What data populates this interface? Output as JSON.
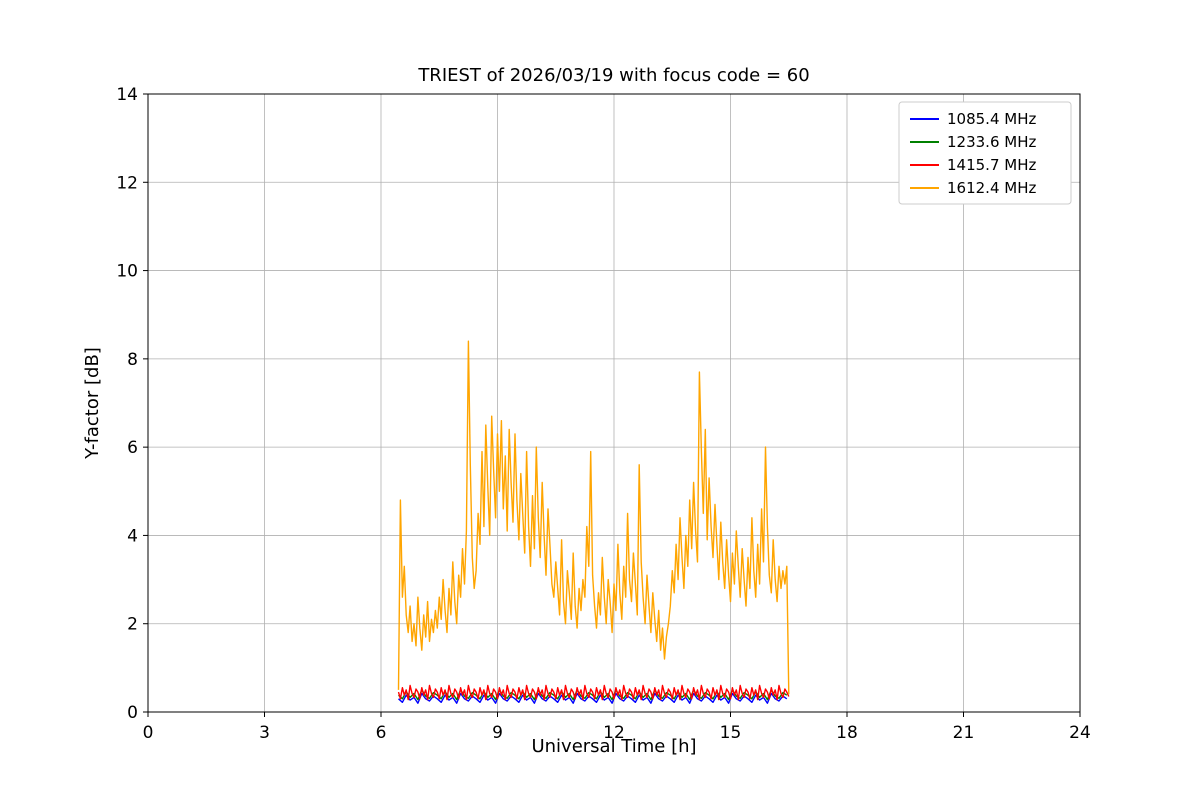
{
  "chart_data": {
    "type": "line",
    "title": "TRIEST of 2026/03/19 with focus code = 60",
    "xlabel": "Universal Time [h]",
    "ylabel": "Y-factor [dB]",
    "xlim": [
      0,
      24
    ],
    "ylim": [
      0,
      14
    ],
    "xticks": [
      0,
      3,
      6,
      9,
      12,
      15,
      18,
      21,
      24
    ],
    "yticks": [
      0,
      2,
      4,
      6,
      8,
      10,
      12,
      14
    ],
    "grid": true,
    "grid_color": "#b0b0b0",
    "legend_position": "upper right",
    "series": [
      {
        "name": "1085.4 MHz",
        "color": "#0000ff",
        "x0": 6.45,
        "dx": 0.1,
        "y": [
          0.3,
          0.22,
          0.38,
          0.27,
          0.33,
          0.2,
          0.42,
          0.3,
          0.25,
          0.36,
          0.3,
          0.22,
          0.38,
          0.27,
          0.33,
          0.2,
          0.42,
          0.3,
          0.25,
          0.36,
          0.3,
          0.22,
          0.38,
          0.27,
          0.33,
          0.2,
          0.42,
          0.3,
          0.25,
          0.36,
          0.3,
          0.22,
          0.38,
          0.27,
          0.33,
          0.2,
          0.42,
          0.3,
          0.25,
          0.36,
          0.3,
          0.22,
          0.38,
          0.27,
          0.33,
          0.2,
          0.42,
          0.3,
          0.25,
          0.36,
          0.3,
          0.22,
          0.38,
          0.27,
          0.33,
          0.2,
          0.42,
          0.3,
          0.25,
          0.36,
          0.3,
          0.22,
          0.38,
          0.27,
          0.33,
          0.2,
          0.42,
          0.3,
          0.25,
          0.36,
          0.3,
          0.22,
          0.38,
          0.27,
          0.33,
          0.2,
          0.42,
          0.3,
          0.25,
          0.36,
          0.3,
          0.22,
          0.38,
          0.27,
          0.33,
          0.2,
          0.42,
          0.3,
          0.25,
          0.36,
          0.3,
          0.22,
          0.38,
          0.27,
          0.33,
          0.2,
          0.42,
          0.3,
          0.25,
          0.36,
          0.3
        ]
      },
      {
        "name": "1233.6 MHz",
        "color": "#008000",
        "x0": 6.45,
        "dx": 0.1,
        "y": [
          0.38,
          0.3,
          0.46,
          0.33,
          0.42,
          0.28,
          0.5,
          0.36,
          0.31,
          0.44,
          0.38,
          0.3,
          0.46,
          0.33,
          0.42,
          0.28,
          0.5,
          0.36,
          0.31,
          0.44,
          0.38,
          0.3,
          0.46,
          0.33,
          0.42,
          0.28,
          0.5,
          0.36,
          0.31,
          0.44,
          0.38,
          0.3,
          0.46,
          0.33,
          0.42,
          0.28,
          0.5,
          0.36,
          0.31,
          0.44,
          0.38,
          0.3,
          0.46,
          0.33,
          0.42,
          0.28,
          0.5,
          0.36,
          0.31,
          0.44,
          0.38,
          0.3,
          0.46,
          0.33,
          0.42,
          0.28,
          0.5,
          0.36,
          0.31,
          0.44,
          0.38,
          0.3,
          0.46,
          0.33,
          0.42,
          0.28,
          0.5,
          0.36,
          0.31,
          0.44,
          0.38,
          0.3,
          0.46,
          0.33,
          0.42,
          0.28,
          0.5,
          0.36,
          0.31,
          0.44,
          0.38,
          0.3,
          0.46,
          0.33,
          0.42,
          0.28,
          0.5,
          0.36,
          0.31,
          0.44,
          0.38,
          0.3,
          0.46,
          0.33,
          0.42,
          0.28,
          0.5,
          0.36,
          0.31,
          0.44,
          0.38
        ]
      },
      {
        "name": "1415.7 MHz",
        "color": "#ff0000",
        "x0": 6.45,
        "dx": 0.05,
        "y": [
          0.45,
          0.3,
          0.55,
          0.38,
          0.5,
          0.28,
          0.6,
          0.42,
          0.33,
          0.52,
          0.45,
          0.3,
          0.55,
          0.38,
          0.5,
          0.28,
          0.6,
          0.42,
          0.33,
          0.52,
          0.45,
          0.3,
          0.55,
          0.38,
          0.5,
          0.28,
          0.6,
          0.42,
          0.33,
          0.52,
          0.45,
          0.3,
          0.55,
          0.38,
          0.5,
          0.28,
          0.6,
          0.42,
          0.33,
          0.52,
          0.45,
          0.3,
          0.55,
          0.38,
          0.5,
          0.28,
          0.6,
          0.42,
          0.33,
          0.52,
          0.45,
          0.3,
          0.55,
          0.38,
          0.5,
          0.28,
          0.6,
          0.42,
          0.33,
          0.52,
          0.45,
          0.3,
          0.55,
          0.38,
          0.5,
          0.28,
          0.6,
          0.42,
          0.33,
          0.52,
          0.45,
          0.3,
          0.55,
          0.38,
          0.5,
          0.28,
          0.6,
          0.42,
          0.33,
          0.52,
          0.45,
          0.3,
          0.55,
          0.38,
          0.5,
          0.28,
          0.6,
          0.42,
          0.33,
          0.52,
          0.45,
          0.3,
          0.55,
          0.38,
          0.5,
          0.28,
          0.6,
          0.42,
          0.33,
          0.52,
          0.45,
          0.3,
          0.55,
          0.38,
          0.5,
          0.28,
          0.6,
          0.42,
          0.33,
          0.52,
          0.45,
          0.3,
          0.55,
          0.38,
          0.5,
          0.28,
          0.6,
          0.42,
          0.33,
          0.52,
          0.45,
          0.3,
          0.55,
          0.38,
          0.5,
          0.28,
          0.6,
          0.42,
          0.33,
          0.52,
          0.45,
          0.3,
          0.55,
          0.38,
          0.5,
          0.28,
          0.6,
          0.42,
          0.33,
          0.52,
          0.45,
          0.3,
          0.55,
          0.38,
          0.5,
          0.28,
          0.6,
          0.42,
          0.33,
          0.52,
          0.45,
          0.3,
          0.55,
          0.38,
          0.5,
          0.28,
          0.6,
          0.42,
          0.33,
          0.52,
          0.45,
          0.3,
          0.55,
          0.38,
          0.5,
          0.28,
          0.6,
          0.42,
          0.33,
          0.52,
          0.45,
          0.3,
          0.55,
          0.38,
          0.5,
          0.28,
          0.6,
          0.42,
          0.33,
          0.52,
          0.45,
          0.3,
          0.55,
          0.38,
          0.5,
          0.28,
          0.6,
          0.42,
          0.33,
          0.52,
          0.45,
          0.3,
          0.55,
          0.38,
          0.5,
          0.28,
          0.6,
          0.42,
          0.33,
          0.52,
          0.45,
          0.35
        ]
      },
      {
        "name": "1612.4 MHz",
        "color": "#ffa500",
        "x0": 6.45,
        "dx": 0.05,
        "y": [
          0.5,
          4.8,
          2.6,
          3.3,
          2.2,
          1.8,
          2.4,
          1.6,
          2.0,
          1.5,
          2.6,
          1.9,
          1.4,
          2.2,
          1.7,
          2.5,
          1.6,
          2.1,
          1.8,
          2.3,
          1.9,
          2.6,
          2.1,
          3.0,
          2.3,
          1.8,
          2.8,
          2.2,
          3.4,
          2.5,
          2.0,
          3.1,
          2.6,
          3.7,
          2.9,
          4.1,
          8.4,
          5.6,
          3.5,
          2.8,
          3.2,
          4.5,
          3.8,
          5.9,
          4.2,
          6.5,
          5.1,
          4.0,
          6.7,
          5.5,
          4.4,
          6.3,
          5.0,
          6.6,
          4.6,
          5.8,
          4.1,
          6.4,
          5.2,
          4.3,
          6.3,
          4.8,
          3.9,
          5.4,
          4.5,
          3.6,
          5.9,
          4.2,
          3.3,
          4.9,
          3.7,
          6.0,
          4.4,
          3.5,
          5.2,
          4.0,
          3.1,
          4.6,
          3.8,
          2.9,
          2.6,
          3.4,
          2.8,
          2.2,
          3.9,
          2.5,
          2.0,
          3.2,
          2.7,
          2.1,
          3.6,
          2.4,
          1.9,
          2.8,
          2.3,
          3.0,
          2.6,
          4.2,
          3.3,
          5.9,
          3.1,
          2.4,
          1.9,
          2.7,
          2.2,
          3.5,
          2.6,
          2.0,
          3.0,
          2.5,
          1.8,
          2.9,
          2.3,
          3.8,
          2.7,
          2.1,
          3.3,
          2.6,
          4.5,
          3.0,
          2.5,
          3.6,
          2.9,
          2.2,
          5.6,
          3.4,
          2.6,
          2.0,
          3.1,
          2.4,
          1.8,
          2.7,
          2.1,
          1.6,
          2.3,
          1.4,
          1.9,
          1.2,
          1.7,
          2.0,
          2.4,
          3.2,
          2.7,
          3.8,
          3.0,
          4.4,
          3.5,
          2.8,
          4.0,
          3.3,
          4.8,
          3.7,
          5.2,
          4.1,
          3.4,
          7.7,
          5.9,
          4.5,
          6.4,
          3.9,
          5.3,
          4.2,
          3.5,
          4.7,
          3.8,
          3.0,
          4.3,
          3.4,
          2.8,
          3.9,
          3.1,
          2.5,
          3.6,
          2.9,
          4.1,
          3.3,
          2.6,
          3.7,
          3.0,
          2.4,
          3.5,
          2.8,
          4.4,
          3.2,
          2.6,
          3.8,
          2.9,
          4.6,
          3.4,
          6.0,
          4.2,
          3.1,
          2.7,
          3.9,
          3.0,
          2.5,
          3.3,
          2.8,
          3.2,
          2.9,
          3.3,
          0.4
        ]
      }
    ]
  }
}
